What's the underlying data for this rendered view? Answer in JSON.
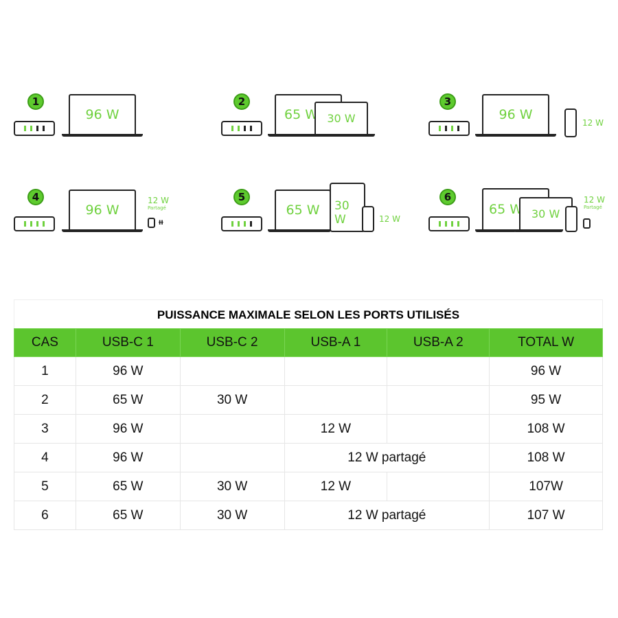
{
  "scenarios": [
    {
      "number": "1",
      "devices": [
        "96 W"
      ]
    },
    {
      "number": "2",
      "devices": [
        "65 W",
        "30 W"
      ]
    },
    {
      "number": "3",
      "devices": [
        "96 W"
      ],
      "extra": "12 W"
    },
    {
      "number": "4",
      "devices": [
        "96 W"
      ],
      "extra": "12 W",
      "extra_note": "Partagé"
    },
    {
      "number": "5",
      "devices": [
        "65 W",
        "30 W"
      ],
      "extra": "12 W"
    },
    {
      "number": "6",
      "devices": [
        "65 W",
        "30 W"
      ],
      "extra": "12 W",
      "extra_note": "Partagé"
    }
  ],
  "table": {
    "title": "PUISSANCE MAXIMALE SELON LES PORTS UTILISÉS",
    "header_color": "#5cc52e",
    "columns": [
      "CAS",
      "USB-C 1",
      "USB-C 2",
      "USB-A 1",
      "USB-A 2",
      "TOTAL W"
    ],
    "rows": [
      {
        "cas": "1",
        "usbc1": "96 W",
        "usbc2": "",
        "usba1": "",
        "usba2": "",
        "total": "96 W"
      },
      {
        "cas": "2",
        "usbc1": "65 W",
        "usbc2": "30 W",
        "usba1": "",
        "usba2": "",
        "total": "95 W"
      },
      {
        "cas": "3",
        "usbc1": "96 W",
        "usbc2": "",
        "usba1": "12 W",
        "usba2": "",
        "total": "108 W"
      },
      {
        "cas": "4",
        "usbc1": "96 W",
        "usbc2": "",
        "usba_shared": "12 W partagé",
        "total": "108 W"
      },
      {
        "cas": "5",
        "usbc1": "65 W",
        "usbc2": "30 W",
        "usba1": "12 W",
        "usba2": "",
        "total": "107W"
      },
      {
        "cas": "6",
        "usbc1": "65 W",
        "usbc2": "30 W",
        "usba_shared": "12 W partagé",
        "total": "107 W"
      }
    ]
  }
}
